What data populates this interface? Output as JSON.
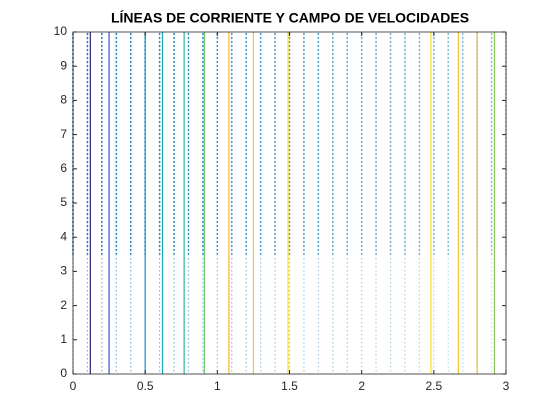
{
  "chart_data": {
    "type": "streamline",
    "title": "LÍNEAS DE CORRIENTE Y CAMPO DE VELOCIDADES",
    "xlim": [
      0,
      3
    ],
    "xticks": [
      0,
      0.5,
      1,
      1.5,
      2,
      2.5,
      3
    ],
    "ylim": [
      0,
      10
    ],
    "yticks": [
      0,
      1,
      2,
      3,
      4,
      5,
      6,
      7,
      8,
      9,
      10
    ],
    "streamlines": [
      {
        "x": 0.12,
        "color": "#2b1f6e"
      },
      {
        "x": 0.25,
        "color": "#3d4fd8"
      },
      {
        "x": 0.5,
        "color": "#1d8fd0"
      },
      {
        "x": 0.62,
        "color": "#18a9b8"
      },
      {
        "x": 0.77,
        "color": "#2bb8a0"
      },
      {
        "x": 0.91,
        "color": "#6cc566"
      },
      {
        "x": 1.08,
        "color": "#f0b830"
      },
      {
        "x": 1.25,
        "color": "#f5c838"
      },
      {
        "x": 1.49,
        "color": "#f8e020"
      },
      {
        "x": 2.48,
        "color": "#f8e020"
      },
      {
        "x": 2.67,
        "color": "#f2c532"
      },
      {
        "x": 2.8,
        "color": "#e8b83a"
      },
      {
        "x": 2.92,
        "color": "#8ac858"
      }
    ],
    "quiver": {
      "color": "#0072bd",
      "x": [
        0,
        0.1,
        0.2,
        0.3,
        0.4,
        0.5,
        0.6,
        0.7,
        0.8,
        0.9,
        1,
        1.1,
        1.2,
        1.3,
        1.4,
        1.5,
        1.6,
        1.7,
        1.8,
        1.9,
        2,
        2.1,
        2.2,
        2.3,
        2.4,
        2.5,
        2.6,
        2.7,
        2.8,
        2.9,
        3
      ]
    }
  }
}
